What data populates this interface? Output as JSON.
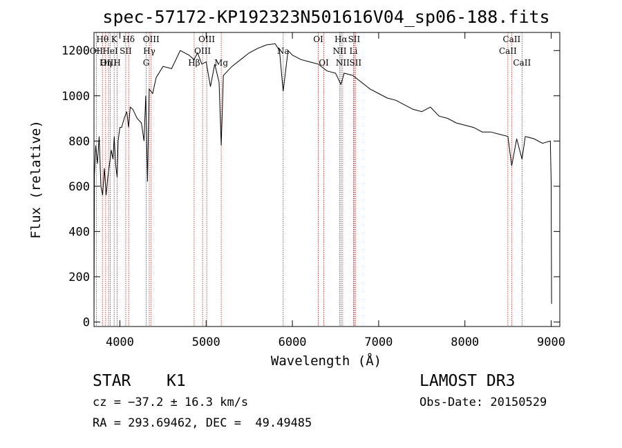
{
  "chart_data": {
    "type": "line",
    "title": "spec-57172-KP192323N501616V04_sp06-188.fits",
    "xlabel": "Wavelength (Å)",
    "ylabel": "Flux (relative)",
    "xlim": [
      3700,
      9100
    ],
    "ylim": [
      -20,
      1280
    ],
    "x_ticks": [
      4000,
      5000,
      6000,
      7000,
      8000,
      9000
    ],
    "y_ticks": [
      0,
      200,
      400,
      600,
      800,
      1000,
      1200
    ],
    "grid": false,
    "series": [
      {
        "name": "flux",
        "x": [
          3700,
          3705,
          3720,
          3740,
          3760,
          3780,
          3800,
          3820,
          3840,
          3860,
          3880,
          3900,
          3920,
          3935,
          3950,
          3968,
          3980,
          4000,
          4020,
          4050,
          4080,
          4101,
          4120,
          4150,
          4200,
          4250,
          4280,
          4300,
          4320,
          4340,
          4380,
          4420,
          4500,
          4600,
          4700,
          4800,
          4861,
          4900,
          4950,
          5000,
          5050,
          5100,
          5150,
          5175,
          5200,
          5300,
          5400,
          5500,
          5600,
          5700,
          5800,
          5850,
          5893,
          5950,
          6000,
          6100,
          6200,
          6300,
          6400,
          6500,
          6563,
          6600,
          6700,
          6800,
          6900,
          7000,
          7100,
          7200,
          7300,
          7400,
          7500,
          7600,
          7700,
          7800,
          7900,
          8000,
          8100,
          8200,
          8300,
          8400,
          8498,
          8542,
          8600,
          8662,
          8700,
          8800,
          8900,
          8990,
          9000,
          9005
        ],
        "values": [
          0,
          650,
          780,
          700,
          820,
          600,
          560,
          680,
          560,
          640,
          700,
          760,
          720,
          820,
          700,
          640,
          800,
          860,
          860,
          900,
          930,
          860,
          950,
          940,
          900,
          880,
          800,
          1000,
          620,
          1030,
          1010,
          1080,
          1130,
          1120,
          1200,
          1180,
          1160,
          1190,
          1140,
          1150,
          1040,
          1140,
          1060,
          780,
          1090,
          1130,
          1160,
          1190,
          1210,
          1225,
          1230,
          1200,
          1020,
          1200,
          1180,
          1160,
          1150,
          1140,
          1110,
          1100,
          1050,
          1100,
          1090,
          1060,
          1030,
          1010,
          990,
          980,
          960,
          940,
          930,
          950,
          910,
          900,
          880,
          870,
          860,
          840,
          840,
          830,
          820,
          690,
          810,
          720,
          820,
          810,
          790,
          800,
          620,
          80
        ]
      }
    ],
    "line_markers": [
      {
        "label": "Hθ",
        "x": 3798,
        "row": 1
      },
      {
        "label": "OII",
        "x": 3727,
        "row": 2
      },
      {
        "label": "OIII",
        "x": 3869,
        "row": 3
      },
      {
        "label": "K",
        "x": 3934,
        "row": 1
      },
      {
        "label": "HeI",
        "x": 3889,
        "row": 2
      },
      {
        "label": "Hη",
        "x": 3835,
        "row": 3
      },
      {
        "label": "Hδ",
        "x": 4102,
        "row": 1
      },
      {
        "label": "SII",
        "x": 4068,
        "row": 2
      },
      {
        "label": "H",
        "x": 3968,
        "row": 3
      },
      {
        "label": "OIII",
        "x": 4363,
        "row": 1
      },
      {
        "label": "Hγ",
        "x": 4341,
        "row": 2
      },
      {
        "label": "G",
        "x": 4305,
        "row": 3
      },
      {
        "label": "OIII",
        "x": 5007,
        "row": 1
      },
      {
        "label": "OIII",
        "x": 4959,
        "row": 2
      },
      {
        "label": "Hβ",
        "x": 4861,
        "row": 3
      },
      {
        "label": "Mg",
        "x": 5175,
        "row": 3
      },
      {
        "label": "Na",
        "x": 5893,
        "row": 2
      },
      {
        "label": "OI",
        "x": 6300,
        "row": 1
      },
      {
        "label": "OI",
        "x": 6364,
        "row": 3
      },
      {
        "label": "Hα",
        "x": 6563,
        "row": 1
      },
      {
        "label": "NII",
        "x": 6548,
        "row": 2
      },
      {
        "label": "NII",
        "x": 6583,
        "row": 3
      },
      {
        "label": "SII",
        "x": 6716,
        "row": 1
      },
      {
        "label": "Li",
        "x": 6708,
        "row": 2
      },
      {
        "label": "SII",
        "x": 6731,
        "row": 3
      },
      {
        "label": "CaII",
        "x": 8542,
        "row": 1
      },
      {
        "label": "CaII",
        "x": 8498,
        "row": 2
      },
      {
        "label": "CaII",
        "x": 8662,
        "row": 3
      }
    ]
  },
  "info": {
    "object_class": "STAR",
    "subclass": "K1",
    "survey": "LAMOST DR3",
    "cz": "cz = −37.2 ± 16.3 km/s",
    "obs_date": "Obs-Date: 20150529",
    "coords": "RA = 293.69462, DEC =  49.49485"
  },
  "colors": {
    "spectrum": "#000000",
    "marker_lines": "#b22222",
    "axes": "#000000",
    "background": "#ffffff"
  }
}
